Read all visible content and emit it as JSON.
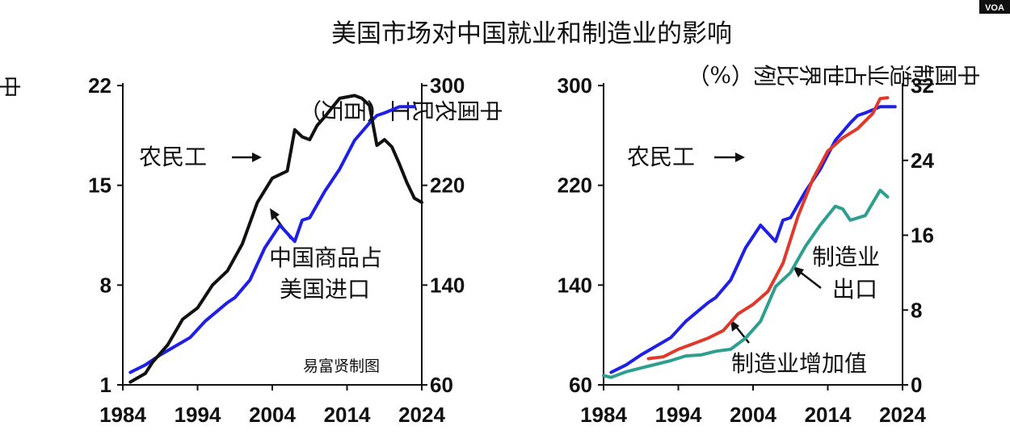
{
  "title": "美国市场对中国就业和制造业的影响",
  "logo": "VOA",
  "colors": {
    "blue": "#1f1fe6",
    "black": "#111111",
    "red": "#e0392b",
    "teal": "#2e9e8f"
  },
  "chart_data": [
    {
      "type": "line",
      "left_axis": {
        "label": "中国商品占美国进口（%）",
        "ticks": [
          "22",
          "15",
          "8",
          "1"
        ],
        "ylim": [
          1,
          22
        ]
      },
      "right_axis": {
        "label": "中国农民工（百万）",
        "ticks": [
          "300",
          "220",
          "140",
          "60"
        ],
        "ylim": [
          60,
          300
        ]
      },
      "x_ticks": [
        "1984",
        "1994",
        "2004",
        "2014",
        "2024"
      ],
      "xlim": [
        1984,
        2024
      ],
      "series": [
        {
          "name": "农民工",
          "axis": "right",
          "color": "blue",
          "x": [
            1985,
            1987,
            1989,
            1991,
            1993,
            1995,
            1997,
            1998,
            1999,
            2001,
            2003,
            2005,
            2007,
            2008,
            2009,
            2011,
            2013,
            2015,
            2017,
            2018,
            2019,
            2021,
            2023
          ],
          "y": [
            70,
            76,
            84,
            91,
            98,
            111,
            121,
            126,
            130,
            144,
            170,
            188,
            175,
            192,
            194,
            215,
            233,
            256,
            270,
            276,
            278,
            283,
            283
          ]
        },
        {
          "name": "中国商品占美国进口",
          "axis": "left",
          "color": "black",
          "x": [
            1985,
            1987,
            1988,
            1990,
            1992,
            1994,
            1996,
            1998,
            2000,
            2002,
            2004,
            2006,
            2007,
            2008,
            2009,
            2010,
            2011,
            2013,
            2015,
            2016,
            2017,
            2018,
            2019,
            2020,
            2021,
            2022,
            2023,
            2024
          ],
          "y": [
            1.2,
            1.8,
            2.6,
            3.8,
            5.6,
            6.4,
            8,
            9,
            10.9,
            13.8,
            15.5,
            16,
            18.9,
            18.4,
            18.2,
            19.2,
            19.8,
            21.1,
            21.3,
            21.1,
            20.6,
            17.8,
            18.2,
            17.7,
            16.5,
            15.2,
            14.1,
            13.8
          ]
        }
      ],
      "annotations": [
        "农民工",
        "中国商品占",
        "美国进口"
      ],
      "credit": "易富贤制图"
    },
    {
      "type": "line",
      "left_axis": {
        "label": "",
        "ticks": [
          "300",
          "220",
          "140",
          "60"
        ],
        "ylim": [
          60,
          300
        ]
      },
      "right_axis": {
        "label": "中国制造业占世界比例（%）",
        "ticks": [
          "32",
          "24",
          "16",
          "8",
          "0"
        ],
        "ylim": [
          0,
          32
        ]
      },
      "x_ticks": [
        "1984",
        "1994",
        "2004",
        "2014",
        "2024"
      ],
      "xlim": [
        1984,
        2024
      ],
      "series": [
        {
          "name": "农民工",
          "axis": "left",
          "color": "blue",
          "x": [
            1985,
            1987,
            1989,
            1991,
            1993,
            1995,
            1997,
            1998,
            1999,
            2001,
            2003,
            2005,
            2007,
            2008,
            2009,
            2011,
            2013,
            2015,
            2017,
            2018,
            2019,
            2021,
            2023
          ],
          "y": [
            70,
            76,
            84,
            91,
            98,
            111,
            121,
            126,
            130,
            144,
            170,
            188,
            175,
            192,
            194,
            215,
            233,
            256,
            270,
            276,
            278,
            283,
            283
          ]
        },
        {
          "name": "制造业出口",
          "axis": "right",
          "color": "red",
          "x": [
            1990,
            1992,
            1994,
            1996,
            1998,
            2000,
            2002,
            2004,
            2006,
            2008,
            2010,
            2012,
            2014,
            2016,
            2018,
            2020,
            2021,
            2022
          ],
          "y": [
            2.8,
            3,
            3.8,
            4.4,
            5,
            5.8,
            7.6,
            8.6,
            10,
            13,
            18,
            22,
            25,
            26.4,
            27.4,
            29,
            30.6,
            30.7
          ]
        },
        {
          "name": "制造业增加值",
          "axis": "right",
          "color": "teal",
          "x": [
            1984,
            1985,
            1987,
            1989,
            1991,
            1993,
            1995,
            1997,
            1999,
            2001,
            2003,
            2005,
            2007,
            2009,
            2011,
            2013,
            2015,
            2016,
            2017,
            2019,
            2021,
            2022
          ],
          "y": [
            1,
            0.8,
            1.4,
            1.8,
            2.2,
            2.6,
            3.1,
            3.2,
            3.6,
            3.8,
            5,
            6.8,
            10.5,
            12,
            14.8,
            17.1,
            19.1,
            18.8,
            17.6,
            18.1,
            20.8,
            20.1
          ]
        }
      ],
      "annotations": [
        "农民工",
        "制造业",
        "出口",
        "制造业增加值"
      ]
    }
  ]
}
